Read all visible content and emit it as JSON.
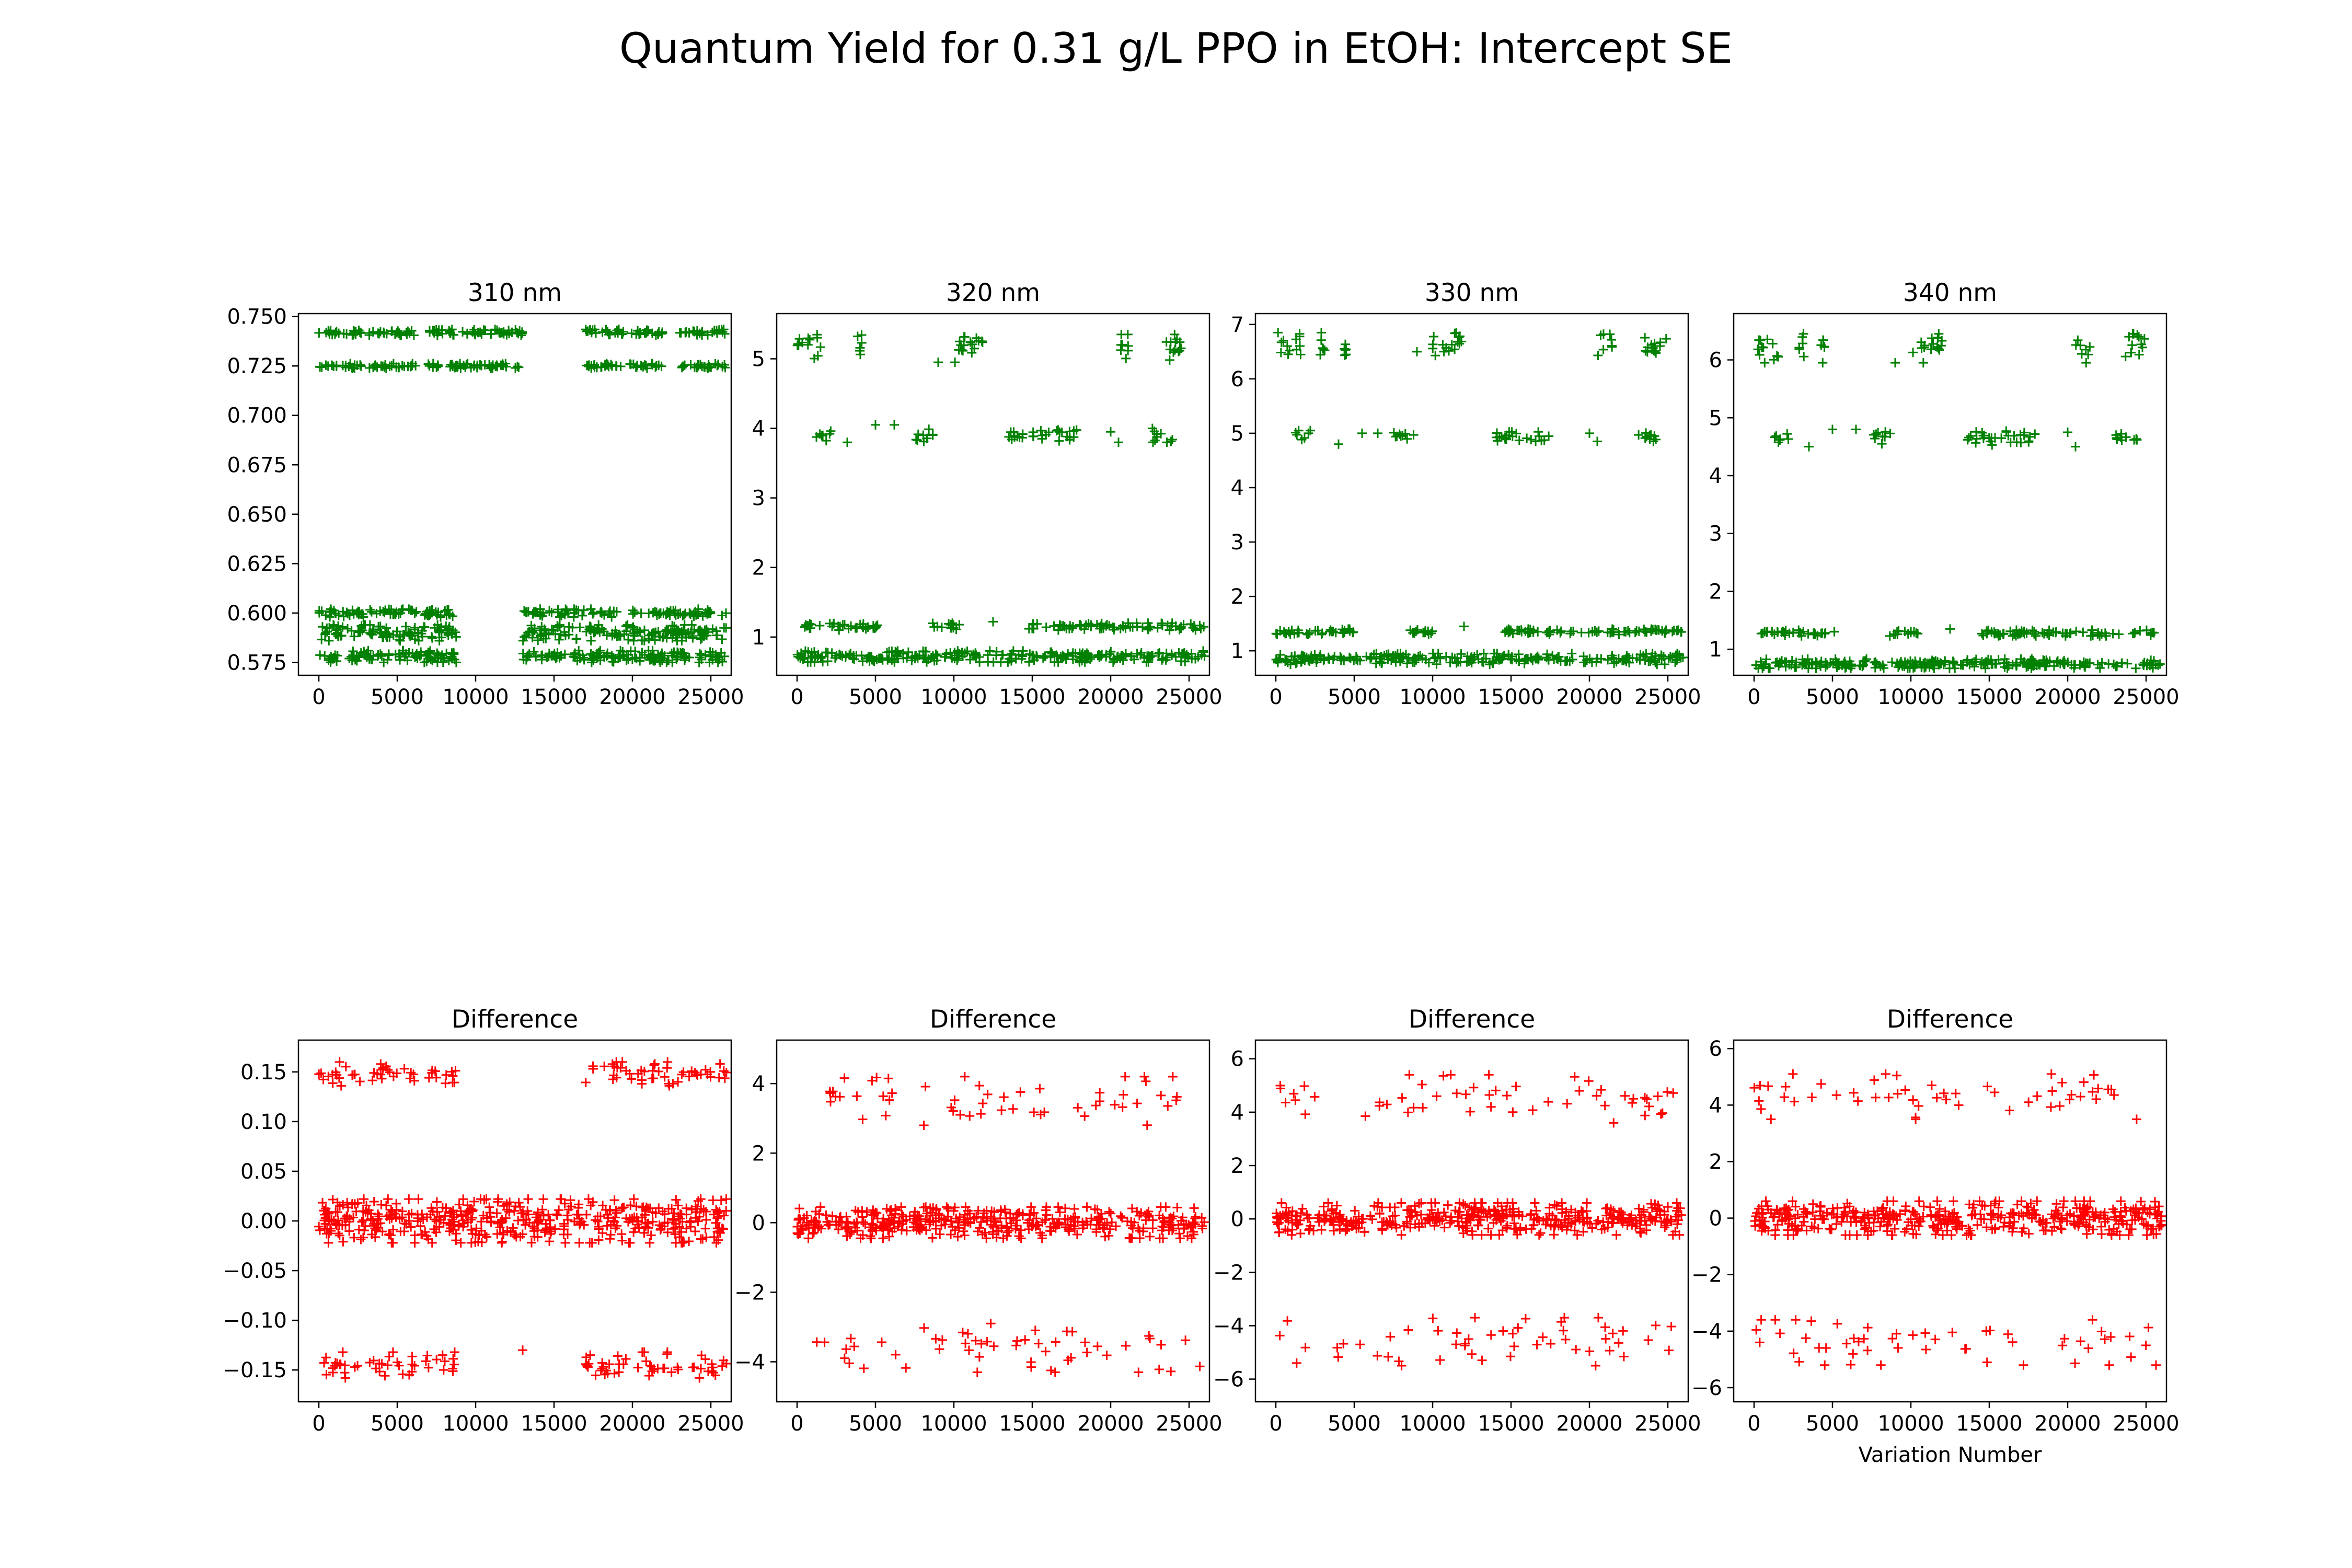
{
  "figure": {
    "suptitle": "Quantum Yield for 0.31 g/L PPO in EtOH: Intercept SE",
    "marker": "plus",
    "colors": {
      "top": "#008000",
      "bottom": "#ff0000"
    }
  },
  "chart_data": [
    {
      "type": "scatter",
      "title": "310 nm",
      "xlabel": "",
      "ylabel": "",
      "color": "#008000",
      "xlim": [
        -1300,
        26300
      ],
      "ylim": [
        0.5685,
        0.7515
      ],
      "xticks": [
        0,
        5000,
        10000,
        15000,
        20000,
        25000
      ],
      "xtick_labels": [
        "0",
        "5000",
        "10000",
        "15000",
        "20000",
        "25000"
      ],
      "yticks": [
        0.575,
        0.6,
        0.625,
        0.65,
        0.675,
        0.7,
        0.725,
        0.75
      ],
      "ytick_labels": [
        "0.575",
        "0.600",
        "0.625",
        "0.650",
        "0.675",
        "0.700",
        "0.725",
        "0.750"
      ],
      "clusters": [
        {
          "y": 0.742,
          "spread": 0.0015,
          "x": [
            [
              0,
              2700
            ],
            [
              3200,
              6200
            ],
            [
              6800,
              9000
            ],
            [
              9000,
              13000
            ],
            [
              17000,
              22000
            ],
            [
              23000,
              26000
            ]
          ],
          "density": 1
        },
        {
          "y": 0.725,
          "spread": 0.0012,
          "x": [
            [
              0,
              2700
            ],
            [
              3200,
              6200
            ],
            [
              6800,
              9000
            ],
            [
              9000,
              13000
            ],
            [
              17000,
              22000
            ],
            [
              23000,
              26000
            ]
          ],
          "density": 1
        },
        {
          "y": 0.6,
          "spread": 0.002,
          "x": [
            [
              0,
              8800
            ],
            [
              13000,
              19000
            ],
            [
              20000,
              26000
            ]
          ],
          "density": 1
        },
        {
          "y": 0.59,
          "spread": 0.004,
          "x": [
            [
              0,
              8800
            ],
            [
              13000,
              26000
            ]
          ],
          "density": 1.4
        },
        {
          "y": 0.578,
          "spread": 0.003,
          "x": [
            [
              0,
              8800
            ],
            [
              13000,
              26000
            ]
          ],
          "density": 1.4
        }
      ]
    },
    {
      "type": "scatter",
      "title": "320 nm",
      "xlabel": "",
      "ylabel": "",
      "color": "#008000",
      "xlim": [
        -1300,
        26300
      ],
      "ylim": [
        0.45,
        5.65
      ],
      "xticks": [
        0,
        5000,
        10000,
        15000,
        20000,
        25000
      ],
      "xtick_labels": [
        "0",
        "5000",
        "10000",
        "15000",
        "20000",
        "25000"
      ],
      "yticks": [
        1,
        2,
        3,
        4,
        5
      ],
      "ytick_labels": [
        "1",
        "2",
        "3",
        "4",
        "5"
      ],
      "clusters": [
        {
          "y": 5.15,
          "spread": 0.2,
          "x": [
            [
              0,
              1500
            ],
            [
              3800,
              4200
            ],
            [
              10000,
              12000
            ],
            [
              20500,
              21500
            ],
            [
              23500,
              25000
            ]
          ],
          "density": 1
        },
        {
          "y": 3.9,
          "spread": 0.1,
          "x": [
            [
              1200,
              2200
            ],
            [
              7500,
              8800
            ],
            [
              13500,
              18000
            ],
            [
              22500,
              24000
            ]
          ],
          "density": 0.8
        },
        {
          "y": 1.15,
          "spread": 0.05,
          "x": [
            [
              0,
              5200
            ],
            [
              8500,
              10500
            ],
            [
              14500,
              26000
            ]
          ],
          "density": 0.8
        },
        {
          "y": 0.72,
          "spread": 0.08,
          "x": [
            [
              0,
              26000
            ]
          ],
          "density": 1.2
        }
      ],
      "scattered": [
        [
          3200,
          3.8
        ],
        [
          5000,
          4.05
        ],
        [
          6200,
          4.05
        ],
        [
          9000,
          4.95
        ],
        [
          12500,
          1.22
        ],
        [
          20000,
          3.95
        ],
        [
          20500,
          3.8
        ]
      ]
    },
    {
      "type": "scatter",
      "title": "330 nm",
      "xlabel": "",
      "ylabel": "",
      "color": "#008000",
      "xlim": [
        -1300,
        26300
      ],
      "ylim": [
        0.55,
        7.2
      ],
      "xticks": [
        0,
        5000,
        10000,
        15000,
        20000,
        25000
      ],
      "xtick_labels": [
        "0",
        "5000",
        "10000",
        "15000",
        "20000",
        "25000"
      ],
      "yticks": [
        1,
        2,
        3,
        4,
        5,
        6,
        7
      ],
      "ytick_labels": [
        "1",
        "2",
        "3",
        "4",
        "5",
        "6",
        "7"
      ],
      "clusters": [
        {
          "y": 6.6,
          "spread": 0.25,
          "x": [
            [
              0,
              1600
            ],
            [
              2800,
              3200
            ],
            [
              4200,
              4500
            ],
            [
              10000,
              12000
            ],
            [
              20500,
              21500
            ],
            [
              23500,
              25000
            ]
          ],
          "density": 1
        },
        {
          "y": 4.95,
          "spread": 0.1,
          "x": [
            [
              1200,
              2200
            ],
            [
              7500,
              8800
            ],
            [
              14000,
              17500
            ],
            [
              23000,
              24500
            ]
          ],
          "density": 0.8
        },
        {
          "y": 1.35,
          "spread": 0.05,
          "x": [
            [
              0,
              5200
            ],
            [
              8500,
              10500
            ],
            [
              14500,
              26000
            ]
          ],
          "density": 0.8
        },
        {
          "y": 0.85,
          "spread": 0.1,
          "x": [
            [
              0,
              26000
            ]
          ],
          "density": 1.2
        }
      ],
      "scattered": [
        [
          4000,
          4.8
        ],
        [
          5500,
          5.0
        ],
        [
          6500,
          5.0
        ],
        [
          9000,
          6.5
        ],
        [
          12000,
          1.45
        ],
        [
          20000,
          5.0
        ],
        [
          20500,
          4.85
        ]
      ]
    },
    {
      "type": "scatter",
      "title": "340 nm",
      "xlabel": "",
      "ylabel": "",
      "color": "#008000",
      "xlim": [
        -1300,
        26300
      ],
      "ylim": [
        0.55,
        6.8
      ],
      "xticks": [
        0,
        5000,
        10000,
        15000,
        20000,
        25000
      ],
      "xtick_labels": [
        "0",
        "5000",
        "10000",
        "15000",
        "20000",
        "25000"
      ],
      "yticks": [
        1,
        2,
        3,
        4,
        5,
        6
      ],
      "ytick_labels": [
        "1",
        "2",
        "3",
        "4",
        "5",
        "6"
      ],
      "clusters": [
        {
          "y": 6.2,
          "spread": 0.25,
          "x": [
            [
              0,
              1600
            ],
            [
              2800,
              3200
            ],
            [
              4200,
              4500
            ],
            [
              10000,
              12000
            ],
            [
              20500,
              21500
            ],
            [
              23500,
              25000
            ]
          ],
          "density": 1
        },
        {
          "y": 4.65,
          "spread": 0.12,
          "x": [
            [
              1200,
              2200
            ],
            [
              7500,
              8800
            ],
            [
              13500,
              18000
            ],
            [
              23000,
              24500
            ]
          ],
          "density": 0.8
        },
        {
          "y": 1.28,
          "spread": 0.05,
          "x": [
            [
              0,
              5200
            ],
            [
              8500,
              10500
            ],
            [
              14500,
              26000
            ]
          ],
          "density": 0.8
        },
        {
          "y": 0.75,
          "spread": 0.08,
          "x": [
            [
              0,
              26000
            ]
          ],
          "density": 1.2
        }
      ],
      "scattered": [
        [
          3500,
          4.5
        ],
        [
          5000,
          4.8
        ],
        [
          6500,
          4.8
        ],
        [
          9000,
          5.95
        ],
        [
          12500,
          1.35
        ],
        [
          20000,
          4.75
        ],
        [
          20500,
          4.5
        ]
      ]
    },
    {
      "type": "scatter",
      "title": "Difference",
      "xlabel": "",
      "ylabel": "",
      "color": "#ff0000",
      "xlim": [
        -1300,
        26300
      ],
      "ylim": [
        -0.182,
        0.182
      ],
      "xticks": [
        0,
        5000,
        10000,
        15000,
        20000,
        25000
      ],
      "xtick_labels": [
        "0",
        "5000",
        "10000",
        "15000",
        "20000",
        "25000"
      ],
      "yticks": [
        -0.15,
        -0.1,
        -0.05,
        0.0,
        0.05,
        0.1,
        0.15
      ],
      "ytick_labels": [
        "−0.15",
        "−0.10",
        "−0.05",
        "0.00",
        "0.05",
        "0.10",
        "0.15"
      ],
      "clusters": [
        {
          "y": 0.148,
          "spread": 0.012,
          "x": [
            [
              0,
              2700
            ],
            [
              3200,
              6200
            ],
            [
              6800,
              8800
            ],
            [
              17000,
              26000
            ]
          ],
          "density": 0.7
        },
        {
          "y": 0.0,
          "spread": 0.022,
          "x": [
            [
              0,
              26000
            ]
          ],
          "density": 2.2
        },
        {
          "y": -0.145,
          "spread": 0.013,
          "x": [
            [
              0,
              2700
            ],
            [
              3200,
              6200
            ],
            [
              6800,
              8800
            ],
            [
              17000,
              26000
            ]
          ],
          "density": 0.7
        }
      ],
      "scattered": [
        [
          13000,
          -0.13
        ]
      ]
    },
    {
      "type": "scatter",
      "title": "Difference",
      "xlabel": "",
      "ylabel": "",
      "color": "#ff0000",
      "xlim": [
        -1300,
        26300
      ],
      "ylim": [
        -5.15,
        5.25
      ],
      "xticks": [
        0,
        5000,
        10000,
        15000,
        20000,
        25000
      ],
      "xtick_labels": [
        "0",
        "5000",
        "10000",
        "15000",
        "20000",
        "25000"
      ],
      "yticks": [
        -4,
        -2,
        0,
        2,
        4
      ],
      "ytick_labels": [
        "−4",
        "−2",
        "0",
        "2",
        "4"
      ],
      "clusters": [
        {
          "y": 3.5,
          "spread": 0.7,
          "x": [
            [
              0,
              26000
            ]
          ],
          "density": 0.25
        },
        {
          "y": 0.0,
          "spread": 0.45,
          "x": [
            [
              0,
              26000
            ]
          ],
          "density": 2.0
        },
        {
          "y": -3.6,
          "spread": 0.7,
          "x": [
            [
              0,
              26000
            ]
          ],
          "density": 0.25
        }
      ]
    },
    {
      "type": "scatter",
      "title": "Difference",
      "xlabel": "",
      "ylabel": "",
      "color": "#ff0000",
      "xlim": [
        -1300,
        26300
      ],
      "ylim": [
        -6.85,
        6.7
      ],
      "xticks": [
        0,
        5000,
        10000,
        15000,
        20000,
        25000
      ],
      "xtick_labels": [
        "0",
        "5000",
        "10000",
        "15000",
        "20000",
        "25000"
      ],
      "yticks": [
        -6,
        -4,
        -2,
        0,
        2,
        4,
        6
      ],
      "ytick_labels": [
        "−6",
        "−4",
        "−2",
        "0",
        "2",
        "4",
        "6"
      ],
      "clusters": [
        {
          "y": 4.5,
          "spread": 0.9,
          "x": [
            [
              0,
              26000
            ]
          ],
          "density": 0.25
        },
        {
          "y": 0.0,
          "spread": 0.6,
          "x": [
            [
              0,
              26000
            ]
          ],
          "density": 2.0
        },
        {
          "y": -4.6,
          "spread": 0.9,
          "x": [
            [
              0,
              26000
            ]
          ],
          "density": 0.25
        }
      ]
    },
    {
      "type": "scatter",
      "title": "Difference",
      "xlabel": "Variation Number",
      "ylabel": "",
      "color": "#ff0000",
      "xlim": [
        -1300,
        26300
      ],
      "ylim": [
        -6.5,
        6.3
      ],
      "xticks": [
        0,
        5000,
        10000,
        15000,
        20000,
        25000
      ],
      "xtick_labels": [
        "0",
        "5000",
        "10000",
        "15000",
        "20000",
        "25000"
      ],
      "yticks": [
        -6,
        -4,
        -2,
        0,
        2,
        4,
        6
      ],
      "ytick_labels": [
        "−6",
        "−4",
        "−2",
        "0",
        "2",
        "4",
        "6"
      ],
      "clusters": [
        {
          "y": 4.3,
          "spread": 0.8,
          "x": [
            [
              0,
              26000
            ]
          ],
          "density": 0.25
        },
        {
          "y": 0.0,
          "spread": 0.6,
          "x": [
            [
              0,
              26000
            ]
          ],
          "density": 2.0
        },
        {
          "y": -4.4,
          "spread": 0.8,
          "x": [
            [
              0,
              26000
            ]
          ],
          "density": 0.25
        }
      ]
    }
  ]
}
